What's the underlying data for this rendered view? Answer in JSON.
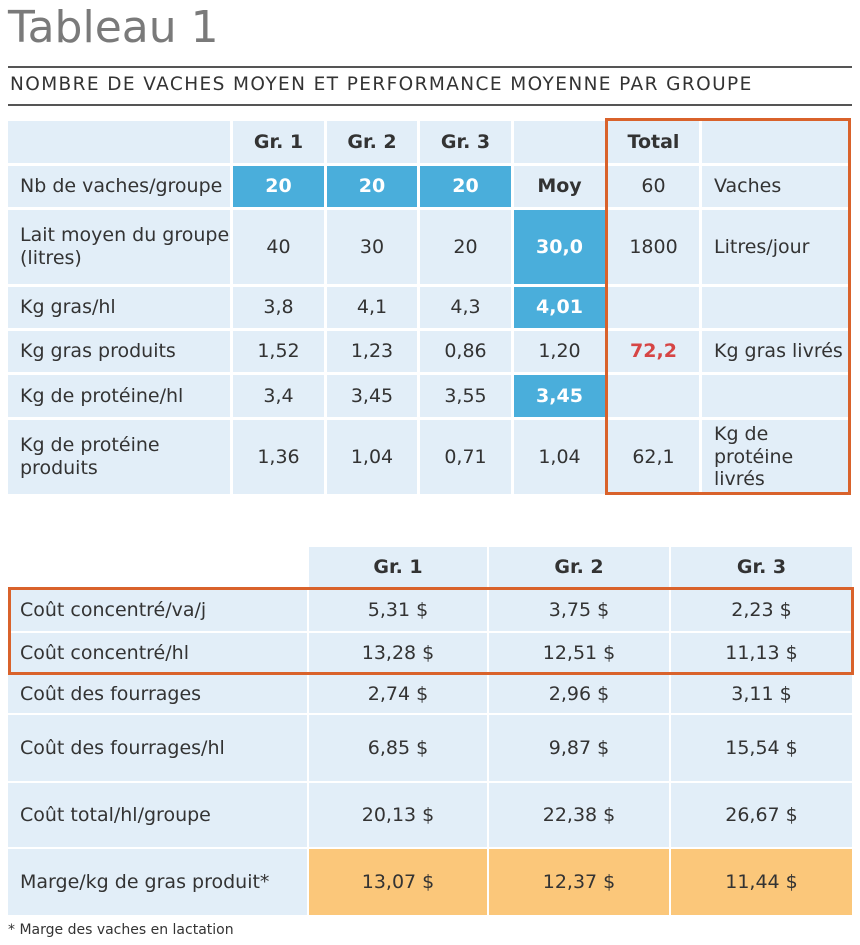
{
  "title": "Tableau 1",
  "subtitle": "NOMBRE DE VACHES MOYEN ET PERFORMANCE MOYENNE PAR GROUPE",
  "table1": {
    "headers": [
      "",
      "Gr. 1",
      "Gr. 2",
      "Gr. 3",
      "",
      "Total",
      ""
    ],
    "rows": [
      [
        "Nb de vaches/groupe",
        "20",
        "20",
        "20",
        "Moy",
        "60",
        "Vaches"
      ],
      [
        "Lait moyen du groupe (litres)",
        "40",
        "30",
        "20",
        "30,0",
        "1800",
        "Litres/jour"
      ],
      [
        "Kg gras/hl",
        "3,8",
        "4,1",
        "4,3",
        "4,01",
        "",
        ""
      ],
      [
        "Kg gras produits",
        "1,52",
        "1,23",
        "0,86",
        "1,20",
        "72,2",
        "Kg gras livrés"
      ],
      [
        "Kg de protéine/hl",
        "3,4",
        "3,45",
        "3,55",
        "3,45",
        "",
        ""
      ],
      [
        "Kg de protéine produits",
        "1,36",
        "1,04",
        "0,71",
        "1,04",
        "62,1",
        "Kg de protéine livrés"
      ]
    ]
  },
  "table2": {
    "headers": [
      "",
      "Gr. 1",
      "Gr. 2",
      "Gr. 3"
    ],
    "rows": [
      [
        "Coût concentré/va/j",
        "5,31 $",
        "3,75 $",
        "2,23 $"
      ],
      [
        "Coût concentré/hl",
        "13,28 $",
        "12,51 $",
        "11,13 $"
      ],
      [
        "Coût des fourrages",
        "2,74 $",
        "2,96 $",
        "3,11 $"
      ],
      [
        "Coût des fourrages/hl",
        "6,85 $",
        "9,87 $",
        "15,54 $"
      ],
      [
        "Coût total/hl/groupe",
        "20,13 $",
        "22,38 $",
        "26,67 $"
      ],
      [
        "Marge/kg de gras produit*",
        "13,07 $",
        "12,37 $",
        "11,44 $"
      ]
    ]
  },
  "footnote": "* Marge des vaches en lactation",
  "colors": {
    "cell_bg": "#e2eef8",
    "highlight_blue": "#4aaedb",
    "highlight_orange": "#fbc77a",
    "box_border": "#d9622b",
    "accent_red": "#d64545"
  }
}
